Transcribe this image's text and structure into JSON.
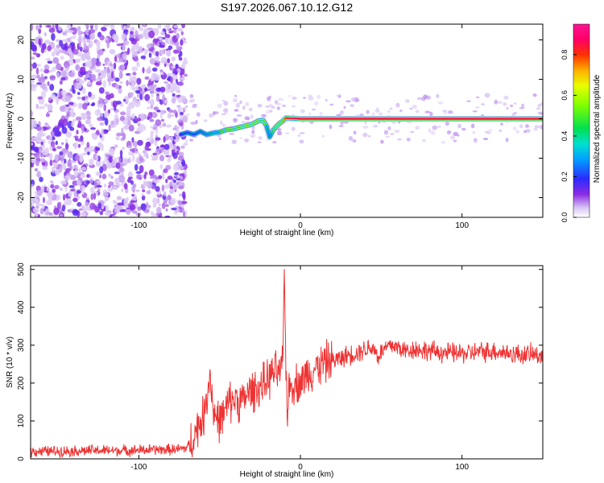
{
  "figure_title": "S197.2026.067.10.12.G12",
  "chart_data": [
    {
      "type": "heatmap",
      "title": "S197.2026.067.10.12.G12",
      "xlabel": "Height of straight line (km)",
      "ylabel": "Frequency (Hz)",
      "xlim": [
        -167,
        150
      ],
      "ylim": [
        -25,
        24
      ],
      "xticks": [
        -100,
        0,
        100
      ],
      "yticks": [
        -20,
        -10,
        0,
        10,
        20
      ],
      "colorbar": {
        "label": "Normalized spectral amplitude",
        "range": [
          0,
          0.95
        ],
        "ticks": [
          0.0,
          0.2,
          0.4,
          0.6,
          0.8
        ]
      },
      "noise_region_x": [
        -167,
        -74
      ],
      "ridge": {
        "x": [
          -74,
          -70,
          -66,
          -62,
          -58,
          -54,
          -50,
          -46,
          -42,
          -38,
          -34,
          -30,
          -26,
          -23,
          -21,
          -19,
          -17,
          -15,
          -13,
          -11,
          -9,
          -6,
          0,
          20,
          40,
          60,
          80,
          100,
          120,
          150
        ],
        "frequency_hz": [
          -4.0,
          -3.5,
          -4.0,
          -3.2,
          -4.0,
          -3.6,
          -3.4,
          -2.8,
          -2.6,
          -2.2,
          -1.8,
          -1.4,
          -0.5,
          -0.4,
          -1.8,
          -4.6,
          -3.0,
          -2.0,
          -1.2,
          -0.6,
          0.2,
          0.1,
          0.0,
          0.0,
          0.0,
          0.0,
          0.0,
          0.0,
          0.0,
          0.0
        ],
        "amplitude": [
          0.4,
          0.45,
          0.45,
          0.5,
          0.55,
          0.6,
          0.62,
          0.65,
          0.68,
          0.7,
          0.72,
          0.74,
          0.76,
          0.78,
          0.6,
          0.55,
          0.65,
          0.7,
          0.75,
          0.8,
          0.88,
          0.9,
          0.92,
          0.93,
          0.93,
          0.93,
          0.93,
          0.93,
          0.93,
          0.92
        ]
      }
    },
    {
      "type": "line",
      "xlabel": "Height of straight line (km)",
      "ylabel": "SNR (10 * v/v)",
      "xlim": [
        -167,
        150
      ],
      "ylim": [
        0,
        510
      ],
      "xticks": [
        -100,
        0,
        100
      ],
      "yticks": [
        0,
        100,
        200,
        300,
        400,
        500
      ],
      "color": "#ee3333",
      "series": [
        {
          "name": "SNR",
          "x": [
            -167,
            -150,
            -130,
            -110,
            -90,
            -75,
            -70,
            -66,
            -63,
            -60,
            -58,
            -56,
            -54,
            -52,
            -50,
            -47,
            -44,
            -40,
            -36,
            -32,
            -28,
            -24,
            -20,
            -16,
            -13,
            -11,
            -10,
            -9,
            -8,
            -7,
            -5,
            0,
            5,
            10,
            15,
            20,
            25,
            30,
            35,
            40,
            45,
            48,
            52,
            56,
            60,
            65,
            70,
            80,
            90,
            100,
            110,
            120,
            130,
            140,
            150
          ],
          "values": [
            20,
            20,
            22,
            22,
            24,
            25,
            30,
            60,
            90,
            110,
            160,
            230,
            130,
            110,
            100,
            120,
            150,
            160,
            150,
            175,
            185,
            190,
            210,
            230,
            225,
            240,
            500,
            250,
            130,
            180,
            200,
            200,
            230,
            240,
            255,
            260,
            265,
            275,
            280,
            290,
            295,
            270,
            290,
            300,
            295,
            285,
            290,
            285,
            280,
            278,
            282,
            285,
            278,
            275,
            275
          ]
        }
      ]
    }
  ]
}
